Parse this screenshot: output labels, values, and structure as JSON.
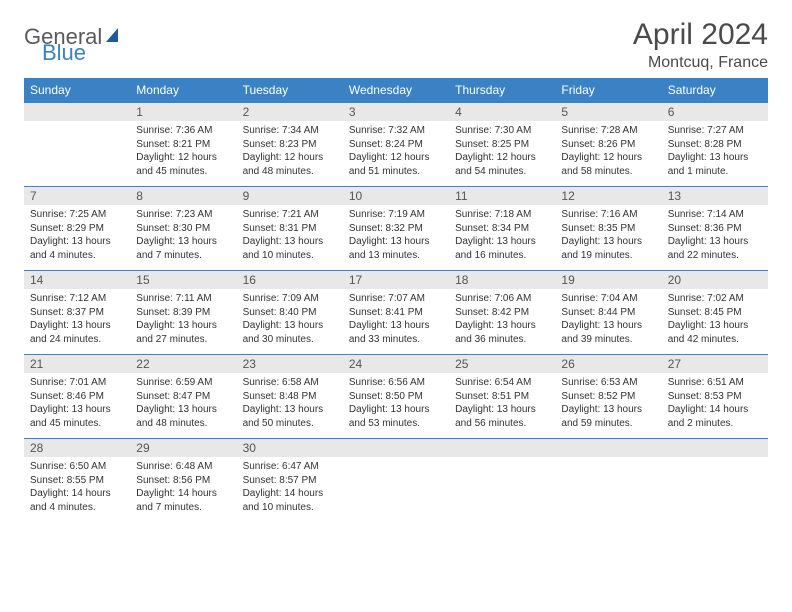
{
  "brand": {
    "part1": "General",
    "part2": "Blue"
  },
  "title": "April 2024",
  "location": "Montcuq, France",
  "colors": {
    "header_bg": "#3b82c4",
    "header_text": "#ffffff",
    "daynum_bg": "#e8e8e8",
    "border": "#3b82c4",
    "title_color": "#4a4a4a"
  },
  "weekdays": [
    "Sunday",
    "Monday",
    "Tuesday",
    "Wednesday",
    "Thursday",
    "Friday",
    "Saturday"
  ],
  "weeks": [
    [
      {
        "n": "",
        "lines": []
      },
      {
        "n": "1",
        "lines": [
          "Sunrise: 7:36 AM",
          "Sunset: 8:21 PM",
          "Daylight: 12 hours",
          "and 45 minutes."
        ]
      },
      {
        "n": "2",
        "lines": [
          "Sunrise: 7:34 AM",
          "Sunset: 8:23 PM",
          "Daylight: 12 hours",
          "and 48 minutes."
        ]
      },
      {
        "n": "3",
        "lines": [
          "Sunrise: 7:32 AM",
          "Sunset: 8:24 PM",
          "Daylight: 12 hours",
          "and 51 minutes."
        ]
      },
      {
        "n": "4",
        "lines": [
          "Sunrise: 7:30 AM",
          "Sunset: 8:25 PM",
          "Daylight: 12 hours",
          "and 54 minutes."
        ]
      },
      {
        "n": "5",
        "lines": [
          "Sunrise: 7:28 AM",
          "Sunset: 8:26 PM",
          "Daylight: 12 hours",
          "and 58 minutes."
        ]
      },
      {
        "n": "6",
        "lines": [
          "Sunrise: 7:27 AM",
          "Sunset: 8:28 PM",
          "Daylight: 13 hours",
          "and 1 minute."
        ]
      }
    ],
    [
      {
        "n": "7",
        "lines": [
          "Sunrise: 7:25 AM",
          "Sunset: 8:29 PM",
          "Daylight: 13 hours",
          "and 4 minutes."
        ]
      },
      {
        "n": "8",
        "lines": [
          "Sunrise: 7:23 AM",
          "Sunset: 8:30 PM",
          "Daylight: 13 hours",
          "and 7 minutes."
        ]
      },
      {
        "n": "9",
        "lines": [
          "Sunrise: 7:21 AM",
          "Sunset: 8:31 PM",
          "Daylight: 13 hours",
          "and 10 minutes."
        ]
      },
      {
        "n": "10",
        "lines": [
          "Sunrise: 7:19 AM",
          "Sunset: 8:32 PM",
          "Daylight: 13 hours",
          "and 13 minutes."
        ]
      },
      {
        "n": "11",
        "lines": [
          "Sunrise: 7:18 AM",
          "Sunset: 8:34 PM",
          "Daylight: 13 hours",
          "and 16 minutes."
        ]
      },
      {
        "n": "12",
        "lines": [
          "Sunrise: 7:16 AM",
          "Sunset: 8:35 PM",
          "Daylight: 13 hours",
          "and 19 minutes."
        ]
      },
      {
        "n": "13",
        "lines": [
          "Sunrise: 7:14 AM",
          "Sunset: 8:36 PM",
          "Daylight: 13 hours",
          "and 22 minutes."
        ]
      }
    ],
    [
      {
        "n": "14",
        "lines": [
          "Sunrise: 7:12 AM",
          "Sunset: 8:37 PM",
          "Daylight: 13 hours",
          "and 24 minutes."
        ]
      },
      {
        "n": "15",
        "lines": [
          "Sunrise: 7:11 AM",
          "Sunset: 8:39 PM",
          "Daylight: 13 hours",
          "and 27 minutes."
        ]
      },
      {
        "n": "16",
        "lines": [
          "Sunrise: 7:09 AM",
          "Sunset: 8:40 PM",
          "Daylight: 13 hours",
          "and 30 minutes."
        ]
      },
      {
        "n": "17",
        "lines": [
          "Sunrise: 7:07 AM",
          "Sunset: 8:41 PM",
          "Daylight: 13 hours",
          "and 33 minutes."
        ]
      },
      {
        "n": "18",
        "lines": [
          "Sunrise: 7:06 AM",
          "Sunset: 8:42 PM",
          "Daylight: 13 hours",
          "and 36 minutes."
        ]
      },
      {
        "n": "19",
        "lines": [
          "Sunrise: 7:04 AM",
          "Sunset: 8:44 PM",
          "Daylight: 13 hours",
          "and 39 minutes."
        ]
      },
      {
        "n": "20",
        "lines": [
          "Sunrise: 7:02 AM",
          "Sunset: 8:45 PM",
          "Daylight: 13 hours",
          "and 42 minutes."
        ]
      }
    ],
    [
      {
        "n": "21",
        "lines": [
          "Sunrise: 7:01 AM",
          "Sunset: 8:46 PM",
          "Daylight: 13 hours",
          "and 45 minutes."
        ]
      },
      {
        "n": "22",
        "lines": [
          "Sunrise: 6:59 AM",
          "Sunset: 8:47 PM",
          "Daylight: 13 hours",
          "and 48 minutes."
        ]
      },
      {
        "n": "23",
        "lines": [
          "Sunrise: 6:58 AM",
          "Sunset: 8:48 PM",
          "Daylight: 13 hours",
          "and 50 minutes."
        ]
      },
      {
        "n": "24",
        "lines": [
          "Sunrise: 6:56 AM",
          "Sunset: 8:50 PM",
          "Daylight: 13 hours",
          "and 53 minutes."
        ]
      },
      {
        "n": "25",
        "lines": [
          "Sunrise: 6:54 AM",
          "Sunset: 8:51 PM",
          "Daylight: 13 hours",
          "and 56 minutes."
        ]
      },
      {
        "n": "26",
        "lines": [
          "Sunrise: 6:53 AM",
          "Sunset: 8:52 PM",
          "Daylight: 13 hours",
          "and 59 minutes."
        ]
      },
      {
        "n": "27",
        "lines": [
          "Sunrise: 6:51 AM",
          "Sunset: 8:53 PM",
          "Daylight: 14 hours",
          "and 2 minutes."
        ]
      }
    ],
    [
      {
        "n": "28",
        "lines": [
          "Sunrise: 6:50 AM",
          "Sunset: 8:55 PM",
          "Daylight: 14 hours",
          "and 4 minutes."
        ]
      },
      {
        "n": "29",
        "lines": [
          "Sunrise: 6:48 AM",
          "Sunset: 8:56 PM",
          "Daylight: 14 hours",
          "and 7 minutes."
        ]
      },
      {
        "n": "30",
        "lines": [
          "Sunrise: 6:47 AM",
          "Sunset: 8:57 PM",
          "Daylight: 14 hours",
          "and 10 minutes."
        ]
      },
      {
        "n": "",
        "lines": []
      },
      {
        "n": "",
        "lines": []
      },
      {
        "n": "",
        "lines": []
      },
      {
        "n": "",
        "lines": []
      }
    ]
  ]
}
